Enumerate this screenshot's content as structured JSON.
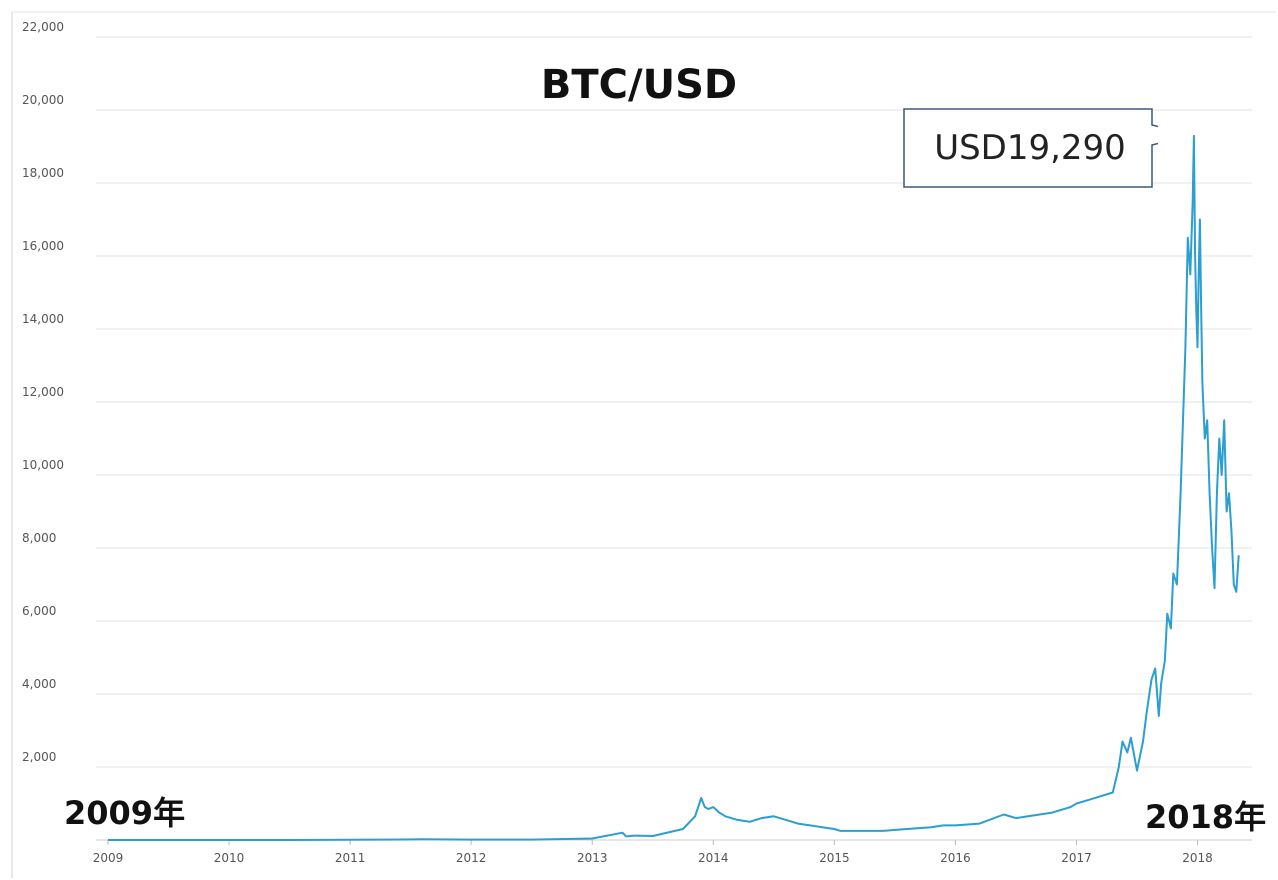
{
  "chart_data": {
    "type": "line",
    "title": "BTC/USD",
    "xlabel": "",
    "ylabel": "",
    "x_ticks": [
      "2009",
      "2010",
      "2011",
      "2012",
      "2013",
      "2014",
      "2015",
      "2016",
      "2017",
      "2018"
    ],
    "y_ticks": [
      "2,000",
      "4,000",
      "6,000",
      "8,000",
      "10,000",
      "12,000",
      "14,000",
      "16,000",
      "18,000",
      "20,000",
      "22,000"
    ],
    "xlim": [
      2009.0,
      2018.45
    ],
    "ylim": [
      0,
      22000
    ],
    "grid": true,
    "series": [
      {
        "color": "#2a9fd0",
        "x": [
          2009.0,
          2010.0,
          2010.5,
          2011.0,
          2011.45,
          2011.6,
          2012.0,
          2012.5,
          2013.0,
          2013.25,
          2013.28,
          2013.35,
          2013.5,
          2013.75,
          2013.85,
          2013.9,
          2013.93,
          2013.96,
          2014.0,
          2014.05,
          2014.1,
          2014.2,
          2014.3,
          2014.4,
          2014.5,
          2014.6,
          2014.7,
          2014.8,
          2014.9,
          2015.0,
          2015.05,
          2015.2,
          2015.4,
          2015.6,
          2015.8,
          2015.9,
          2016.0,
          2016.2,
          2016.4,
          2016.5,
          2016.6,
          2016.8,
          2016.95,
          2017.0,
          2017.1,
          2017.2,
          2017.3,
          2017.35,
          2017.38,
          2017.42,
          2017.45,
          2017.5,
          2017.55,
          2017.58,
          2017.62,
          2017.65,
          2017.68,
          2017.7,
          2017.73,
          2017.75,
          2017.78,
          2017.8,
          2017.83,
          2017.86,
          2017.88,
          2017.9,
          2017.92,
          2017.94,
          2017.96,
          2017.97,
          2017.98,
          2017.99,
          2018.0,
          2018.01,
          2018.02,
          2018.03,
          2018.04,
          2018.06,
          2018.08,
          2018.1,
          2018.12,
          2018.14,
          2018.16,
          2018.18,
          2018.2,
          2018.22,
          2018.24,
          2018.26,
          2018.28,
          2018.3,
          2018.32,
          2018.34
        ],
        "y": [
          0,
          0,
          0,
          5,
          15,
          20,
          10,
          10,
          40,
          200,
          100,
          120,
          110,
          300,
          650,
          1150,
          900,
          850,
          900,
          750,
          650,
          550,
          500,
          600,
          650,
          550,
          450,
          400,
          350,
          300,
          250,
          250,
          250,
          300,
          350,
          400,
          400,
          450,
          700,
          600,
          650,
          750,
          900,
          1000,
          1100,
          1200,
          1300,
          2000,
          2700,
          2400,
          2800,
          1900,
          2700,
          3500,
          4400,
          4700,
          3400,
          4300,
          4900,
          6200,
          5800,
          7300,
          7000,
          9500,
          11500,
          13500,
          16500,
          15500,
          17500,
          19290,
          16000,
          14500,
          13500,
          15500,
          17000,
          14500,
          12500,
          11000,
          11500,
          9500,
          8000,
          6900,
          9500,
          11000,
          10000,
          11500,
          9000,
          9500,
          8500,
          7000,
          6800,
          7800
        ]
      }
    ],
    "annotations": {
      "peak_label": "USD19,290",
      "start_label": "2009年",
      "end_label": "2018年"
    }
  }
}
